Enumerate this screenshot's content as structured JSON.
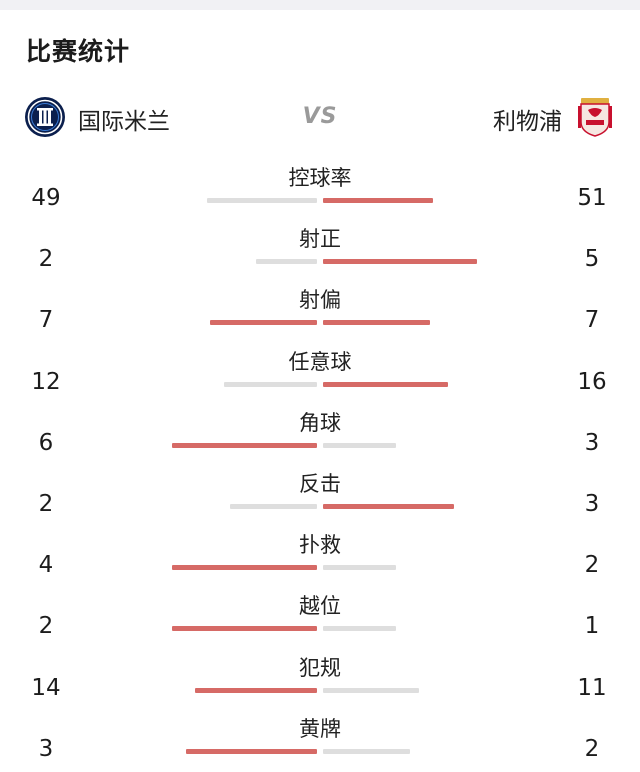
{
  "section_title": "比赛统计",
  "home_team": {
    "name": "国际米兰",
    "crest_icon": "inter-milan-crest-icon"
  },
  "away_team": {
    "name": "利物浦",
    "crest_icon": "liverpool-crest-icon"
  },
  "vs_label": "VS",
  "colors": {
    "winner_bar": "#d66a66",
    "loser_bar": "#dedede"
  },
  "stats": [
    {
      "label": "控球率",
      "home": "49",
      "away": "51",
      "home_fill": 0.38,
      "away_fill": 0.38,
      "leader": "away"
    },
    {
      "label": "射正",
      "home": "2",
      "away": "5",
      "home_fill": 0.21,
      "away_fill": 0.53,
      "leader": "away"
    },
    {
      "label": "射偏",
      "home": "7",
      "away": "7",
      "home_fill": 0.37,
      "away_fill": 0.37,
      "leader": "both"
    },
    {
      "label": "任意球",
      "home": "12",
      "away": "16",
      "home_fill": 0.32,
      "away_fill": 0.43,
      "leader": "away"
    },
    {
      "label": "角球",
      "home": "6",
      "away": "3",
      "home_fill": 0.5,
      "away_fill": 0.25,
      "leader": "home"
    },
    {
      "label": "反击",
      "home": "2",
      "away": "3",
      "home_fill": 0.3,
      "away_fill": 0.45,
      "leader": "away"
    },
    {
      "label": "扑救",
      "home": "4",
      "away": "2",
      "home_fill": 0.5,
      "away_fill": 0.25,
      "leader": "home"
    },
    {
      "label": "越位",
      "home": "2",
      "away": "1",
      "home_fill": 0.5,
      "away_fill": 0.25,
      "leader": "home"
    },
    {
      "label": "犯规",
      "home": "14",
      "away": "11",
      "home_fill": 0.42,
      "away_fill": 0.33,
      "leader": "home"
    },
    {
      "label": "黄牌",
      "home": "3",
      "away": "2",
      "home_fill": 0.45,
      "away_fill": 0.3,
      "leader": "home"
    }
  ]
}
